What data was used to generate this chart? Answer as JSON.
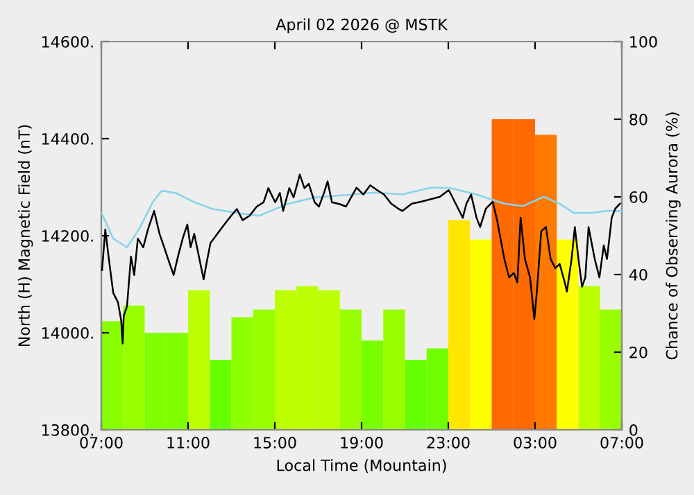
{
  "chart_data": {
    "type": "line",
    "title": "April 02 2026 @ MSTK",
    "xlabel": "Local Time (Mountain)",
    "ylabel": "North (H) Magnetic Field (nT)",
    "y2label": "Chance of Observing Aurora (%)",
    "xlim": [
      "2026-04-02T07:00",
      "2026-04-03T07:00"
    ],
    "xticks": [
      {
        "value": "2026-04-02T07:00",
        "label": "07:00"
      },
      {
        "value": "2026-04-02T11:00",
        "label": "11:00"
      },
      {
        "value": "2026-04-02T15:00",
        "label": "15:00"
      },
      {
        "value": "2026-04-02T19:00",
        "label": "19:00"
      },
      {
        "value": "2026-04-02T23:00",
        "label": "23:00"
      },
      {
        "value": "2026-04-03T03:00",
        "label": "03:00"
      },
      {
        "value": "2026-04-03T07:00",
        "label": "07:00"
      }
    ],
    "ylim": [
      13800,
      14600
    ],
    "yticks": [
      {
        "value": 13800,
        "label": "13800."
      },
      {
        "value": 14000,
        "label": "14000."
      },
      {
        "value": 14200,
        "label": "14200."
      },
      {
        "value": 14400,
        "label": "14400."
      },
      {
        "value": 14600,
        "label": "14600."
      }
    ],
    "y2lim": [
      0,
      100
    ],
    "y2ticks": [
      0,
      20,
      40,
      60,
      80,
      100
    ],
    "grid": false,
    "series": [
      {
        "type": "bar",
        "axis": "y2",
        "x": [
          "2026-04-02T07:30",
          "2026-04-02T08:30",
          "2026-04-02T09:30",
          "2026-04-02T10:30",
          "2026-04-02T11:30",
          "2026-04-02T12:30",
          "2026-04-02T13:30",
          "2026-04-02T14:30",
          "2026-04-02T15:30",
          "2026-04-02T16:30",
          "2026-04-02T17:30",
          "2026-04-02T18:30",
          "2026-04-02T19:30",
          "2026-04-02T20:30",
          "2026-04-02T21:30",
          "2026-04-02T22:30",
          "2026-04-02T23:30",
          "2026-04-03T00:30",
          "2026-04-03T01:30",
          "2026-04-03T02:30",
          "2026-04-03T03:30",
          "2026-04-03T04:30",
          "2026-04-03T05:30",
          "2026-04-03T06:30"
        ],
        "values": [
          28,
          32,
          25,
          25,
          36,
          18,
          29,
          31,
          36,
          37,
          36,
          31,
          23,
          31,
          18,
          21,
          54,
          49,
          80,
          80,
          76,
          49,
          37,
          31
        ],
        "colors": [
          "#88ff00",
          "#99ff00",
          "#80ff00",
          "#80ff00",
          "#bbff00",
          "#66ff00",
          "#90ff00",
          "#99ff00",
          "#bbff00",
          "#bbff00",
          "#bbff00",
          "#99ff00",
          "#77ff00",
          "#99ff00",
          "#66ff00",
          "#70ff00",
          "#ffe600",
          "#ffff00",
          "#ff6a00",
          "#ff6a00",
          "#ff7a00",
          "#ffff00",
          "#bbff00",
          "#99ff00"
        ]
      },
      {
        "color": "#87d3ec",
        "x": [
          "2026-04-02T07:01",
          "2026-04-02T07:33",
          "2026-04-02T08:11",
          "2026-04-02T08:44",
          "2026-04-02T09:22",
          "2026-04-02T09:47",
          "2026-04-02T10:26",
          "2026-04-02T11:17",
          "2026-04-02T12:08",
          "2026-04-02T13:25",
          "2026-04-02T14:16",
          "2026-04-02T15:33",
          "2026-04-02T16:50",
          "2026-04-02T18:19",
          "2026-04-02T19:37",
          "2026-04-02T20:53",
          "2026-04-02T22:10",
          "2026-04-02T23:01",
          "2026-04-03T00:18",
          "2026-04-03T01:35",
          "2026-04-03T02:26",
          "2026-04-03T03:24",
          "2026-04-03T04:08",
          "2026-04-03T04:47",
          "2026-04-03T05:38",
          "2026-04-03T06:17",
          "2026-04-03T07:00"
        ],
        "values": [
          14246,
          14194,
          14176,
          14213,
          14269,
          14293,
          14288,
          14269,
          14255,
          14246,
          14241,
          14265,
          14279,
          14284,
          14289,
          14285,
          14299,
          14299,
          14285,
          14266,
          14261,
          14280,
          14266,
          14247,
          14247,
          14251,
          14251
        ]
      },
      {
        "color": "#000000",
        "x": [
          "2026-04-02T07:02",
          "2026-04-02T07:11",
          "2026-04-02T07:20",
          "2026-04-02T07:33",
          "2026-04-02T07:46",
          "2026-04-02T07:55",
          "2026-04-02T07:59",
          "2026-04-02T08:02",
          "2026-04-02T08:11",
          "2026-04-02T08:22",
          "2026-04-02T08:31",
          "2026-04-02T08:41",
          "2026-04-02T08:56",
          "2026-04-02T09:09",
          "2026-04-02T09:26",
          "2026-04-02T09:41",
          "2026-04-02T09:54",
          "2026-04-02T10:07",
          "2026-04-02T10:20",
          "2026-04-02T10:32",
          "2026-04-02T10:45",
          "2026-04-02T10:58",
          "2026-04-02T11:07",
          "2026-04-02T11:17",
          "2026-04-02T11:30",
          "2026-04-02T11:43",
          "2026-04-02T11:52",
          "2026-04-02T12:02",
          "2026-04-02T12:21",
          "2026-04-02T12:40",
          "2026-04-02T12:59",
          "2026-04-02T13:15",
          "2026-04-02T13:31",
          "2026-04-02T13:50",
          "2026-04-02T14:10",
          "2026-04-02T14:29",
          "2026-04-02T14:42",
          "2026-04-02T15:01",
          "2026-04-02T15:14",
          "2026-04-02T15:23",
          "2026-04-02T15:40",
          "2026-04-02T15:52",
          "2026-04-02T16:09",
          "2026-04-02T16:22",
          "2026-04-02T16:34",
          "2026-04-02T16:50",
          "2026-04-02T17:02",
          "2026-04-02T17:16",
          "2026-04-02T17:26",
          "2026-04-02T17:38",
          "2026-04-02T18:00",
          "2026-04-02T18:17",
          "2026-04-02T18:46",
          "2026-04-02T19:05",
          "2026-04-02T19:24",
          "2026-04-02T19:43",
          "2026-04-02T20:02",
          "2026-04-02T20:22",
          "2026-04-02T20:41",
          "2026-04-02T20:53",
          "2026-04-02T21:19",
          "2026-04-02T21:44",
          "2026-04-02T22:10",
          "2026-04-02T22:36",
          "2026-04-02T23:01",
          "2026-04-02T23:11",
          "2026-04-02T23:27",
          "2026-04-02T23:40",
          "2026-04-02T23:50",
          "2026-04-03T00:03",
          "2026-04-03T00:18",
          "2026-04-03T00:28",
          "2026-04-03T00:44",
          "2026-04-03T01:03",
          "2026-04-03T01:16",
          "2026-04-03T01:35",
          "2026-04-03T01:48",
          "2026-04-03T02:01",
          "2026-04-03T02:11",
          "2026-04-03T02:20",
          "2026-04-03T02:32",
          "2026-04-03T02:46",
          "2026-04-03T02:58",
          "2026-04-03T03:05",
          "2026-04-03T03:17",
          "2026-04-03T03:30",
          "2026-04-03T03:43",
          "2026-04-03T03:56",
          "2026-04-03T04:08",
          "2026-04-03T04:22",
          "2026-04-03T04:28",
          "2026-04-03T04:41",
          "2026-04-03T04:50",
          "2026-04-03T05:00",
          "2026-04-03T05:10",
          "2026-04-03T05:19",
          "2026-04-03T05:28",
          "2026-04-03T05:45",
          "2026-04-03T05:58",
          "2026-04-03T06:10",
          "2026-04-03T06:19",
          "2026-04-03T06:32",
          "2026-04-03T06:42",
          "2026-04-03T06:55"
        ],
        "values": [
          14129,
          14213,
          14157,
          14082,
          14063,
          14025,
          13978,
          14035,
          14054,
          14157,
          14119,
          14194,
          14176,
          14213,
          14251,
          14204,
          14176,
          14147,
          14119,
          14157,
          14194,
          14223,
          14176,
          14204,
          14157,
          14110,
          14147,
          14185,
          14204,
          14223,
          14241,
          14255,
          14232,
          14241,
          14260,
          14269,
          14298,
          14269,
          14288,
          14251,
          14298,
          14279,
          14326,
          14298,
          14307,
          14269,
          14260,
          14288,
          14312,
          14269,
          14265,
          14260,
          14299,
          14285,
          14304,
          14294,
          14285,
          14266,
          14256,
          14251,
          14266,
          14270,
          14275,
          14280,
          14294,
          14280,
          14256,
          14237,
          14266,
          14285,
          14237,
          14218,
          14256,
          14270,
          14228,
          14152,
          14114,
          14123,
          14104,
          14237,
          14152,
          14114,
          14028,
          14085,
          14209,
          14218,
          14152,
          14133,
          14142,
          14104,
          14085,
          14152,
          14218,
          14152,
          14095,
          14114,
          14218,
          14152,
          14114,
          14180,
          14152,
          14237,
          14256,
          14266
        ]
      }
    ]
  }
}
